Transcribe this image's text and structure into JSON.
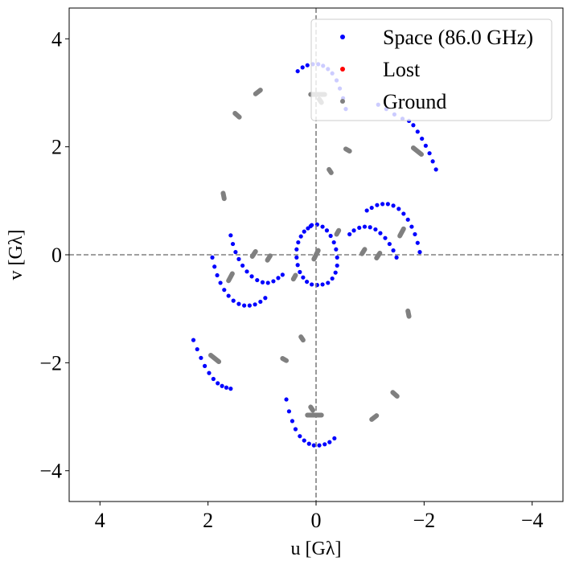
{
  "chart_data": {
    "type": "scatter",
    "title": "",
    "xlabel": "u [Gλ]",
    "ylabel": "v [Gλ]",
    "xlim": [
      4.57,
      -4.57
    ],
    "ylim": [
      -4.57,
      4.57
    ],
    "x_ticks": [
      4,
      2,
      0,
      -2,
      -4
    ],
    "y_ticks": [
      4,
      2,
      0,
      -2,
      -4
    ],
    "x_tick_labels": [
      "4",
      "2",
      "0",
      "−2",
      "−4"
    ],
    "y_tick_labels": [
      "4",
      "2",
      "0",
      "−2",
      "−4"
    ],
    "reference_lines": [
      {
        "axis": "x",
        "value": 0
      },
      {
        "axis": "y",
        "value": 0
      }
    ],
    "legend_position": "top-right",
    "legend": [
      {
        "label": "Space (86.0 GHz)",
        "color": "#0000ff"
      },
      {
        "label": "Lost",
        "color": "#ff0000"
      },
      {
        "label": "Ground",
        "color": "#808080"
      }
    ],
    "colors": {
      "space": "#0000ff",
      "lost": "#ff0000",
      "ground": "#808080",
      "refline": "#808080"
    },
    "space_arcs": [
      [
        [
          0.34,
          3.4
        ],
        [
          0.25,
          3.47
        ],
        [
          0.16,
          3.51
        ],
        [
          0.06,
          3.53
        ],
        [
          -0.04,
          3.53
        ],
        [
          -0.13,
          3.5
        ],
        [
          -0.22,
          3.44
        ],
        [
          -0.3,
          3.36
        ],
        [
          -0.38,
          3.23
        ],
        [
          -0.44,
          3.08
        ],
        [
          -0.5,
          2.9
        ],
        [
          -0.55,
          2.7
        ]
      ],
      [
        [
          -1.15,
          2.78
        ],
        [
          -1.3,
          2.7
        ],
        [
          -1.45,
          2.6
        ],
        [
          -1.6,
          2.52
        ],
        [
          -1.72,
          2.48
        ],
        [
          -1.8,
          2.4
        ],
        [
          -1.88,
          2.28
        ],
        [
          -1.96,
          2.15
        ],
        [
          -2.03,
          2.02
        ],
        [
          -2.1,
          1.88
        ],
        [
          -2.16,
          1.73
        ],
        [
          -2.22,
          1.58
        ]
      ],
      [
        [
          -0.34,
          -3.4
        ],
        [
          -0.25,
          -3.47
        ],
        [
          -0.16,
          -3.51
        ],
        [
          -0.06,
          -3.53
        ],
        [
          0.04,
          -3.53
        ],
        [
          0.13,
          -3.5
        ],
        [
          0.22,
          -3.44
        ],
        [
          0.3,
          -3.36
        ],
        [
          0.38,
          -3.23
        ],
        [
          0.44,
          -3.08
        ],
        [
          0.5,
          -2.9
        ],
        [
          0.55,
          -2.68
        ]
      ],
      [
        [
          2.27,
          -1.58
        ],
        [
          2.2,
          -1.75
        ],
        [
          2.13,
          -1.91
        ],
        [
          2.06,
          -2.06
        ],
        [
          1.98,
          -2.19
        ],
        [
          1.9,
          -2.3
        ],
        [
          1.82,
          -2.38
        ],
        [
          1.74,
          -2.43
        ],
        [
          1.66,
          -2.46
        ],
        [
          1.58,
          -2.48
        ]
      ],
      [
        [
          0.08,
          0.55
        ],
        [
          -0.02,
          0.56
        ],
        [
          -0.12,
          0.52
        ],
        [
          -0.2,
          0.45
        ],
        [
          -0.27,
          0.35
        ],
        [
          -0.33,
          0.23
        ],
        [
          -0.37,
          0.1
        ],
        [
          -0.39,
          -0.05
        ],
        [
          -0.39,
          -0.2
        ],
        [
          -0.36,
          -0.33
        ],
        [
          -0.3,
          -0.44
        ],
        [
          -0.22,
          -0.52
        ],
        [
          -0.12,
          -0.55
        ],
        [
          -0.02,
          -0.56
        ]
      ],
      [
        [
          0.08,
          -0.55
        ],
        [
          0.17,
          -0.5
        ],
        [
          0.24,
          -0.42
        ],
        [
          0.3,
          -0.32
        ],
        [
          0.34,
          -0.19
        ],
        [
          0.36,
          -0.05
        ],
        [
          0.36,
          0.1
        ],
        [
          0.33,
          0.23
        ],
        [
          0.28,
          0.34
        ],
        [
          0.22,
          0.43
        ],
        [
          0.15,
          0.49
        ],
        [
          0.1,
          0.53
        ]
      ],
      [
        [
          1.92,
          -0.05
        ],
        [
          1.88,
          -0.22
        ],
        [
          1.83,
          -0.38
        ],
        [
          1.77,
          -0.52
        ],
        [
          1.7,
          -0.65
        ],
        [
          1.62,
          -0.76
        ],
        [
          1.53,
          -0.85
        ],
        [
          1.43,
          -0.91
        ],
        [
          1.33,
          -0.94
        ],
        [
          1.23,
          -0.94
        ],
        [
          1.13,
          -0.92
        ],
        [
          1.03,
          -0.87
        ],
        [
          0.94,
          -0.8
        ]
      ],
      [
        [
          1.58,
          0.36
        ],
        [
          1.54,
          0.2
        ],
        [
          1.49,
          0.05
        ],
        [
          1.43,
          -0.08
        ],
        [
          1.36,
          -0.2
        ],
        [
          1.28,
          -0.31
        ],
        [
          1.19,
          -0.4
        ],
        [
          1.09,
          -0.47
        ],
        [
          0.99,
          -0.51
        ],
        [
          0.89,
          -0.52
        ],
        [
          0.79,
          -0.49
        ],
        [
          0.7,
          -0.43
        ],
        [
          0.62,
          -0.37
        ]
      ],
      [
        [
          -0.62,
          0.38
        ],
        [
          -0.7,
          0.45
        ],
        [
          -0.8,
          0.5
        ],
        [
          -0.9,
          0.52
        ],
        [
          -1.0,
          0.51
        ],
        [
          -1.1,
          0.47
        ],
        [
          -1.19,
          0.4
        ],
        [
          -1.28,
          0.31
        ],
        [
          -1.36,
          0.2
        ],
        [
          -1.43,
          0.08
        ],
        [
          -1.49,
          -0.05
        ]
      ],
      [
        [
          -0.94,
          0.82
        ],
        [
          -1.03,
          0.87
        ],
        [
          -1.13,
          0.92
        ],
        [
          -1.23,
          0.94
        ],
        [
          -1.33,
          0.94
        ],
        [
          -1.43,
          0.91
        ],
        [
          -1.53,
          0.85
        ],
        [
          -1.62,
          0.76
        ],
        [
          -1.7,
          0.65
        ],
        [
          -1.77,
          0.52
        ],
        [
          -1.83,
          0.38
        ],
        [
          -1.88,
          0.22
        ],
        [
          -1.92,
          0.05
        ]
      ]
    ],
    "ground_segments": [
      [
        [
          0.1,
          2.97
        ],
        [
          -0.16,
          2.97
        ]
      ],
      [
        [
          -0.1,
          -2.97
        ],
        [
          0.16,
          -2.97
        ]
      ],
      [
        [
          1.03,
          3.05
        ],
        [
          1.12,
          2.98
        ]
      ],
      [
        [
          -1.03,
          -3.05
        ],
        [
          -1.12,
          -2.98
        ]
      ],
      [
        [
          1.5,
          2.62
        ],
        [
          1.42,
          2.55
        ]
      ],
      [
        [
          -1.5,
          -2.62
        ],
        [
          -1.42,
          -2.55
        ]
      ],
      [
        [
          -0.04,
          0.08
        ],
        [
          0.04,
          -0.08
        ]
      ],
      [
        [
          -0.55,
          1.96
        ],
        [
          -0.62,
          1.92
        ]
      ],
      [
        [
          0.55,
          -1.96
        ],
        [
          0.62,
          -1.92
        ]
      ],
      [
        [
          -0.24,
          1.58
        ],
        [
          -0.28,
          1.52
        ]
      ],
      [
        [
          0.24,
          -1.58
        ],
        [
          0.28,
          -1.52
        ]
      ],
      [
        [
          1.72,
          1.14
        ],
        [
          1.7,
          1.04
        ]
      ],
      [
        [
          -1.72,
          -1.14
        ],
        [
          -1.7,
          -1.04
        ]
      ],
      [
        [
          -1.8,
          1.98
        ],
        [
          -1.95,
          1.86
        ]
      ],
      [
        [
          1.8,
          -1.98
        ],
        [
          1.95,
          -1.86
        ]
      ],
      [
        [
          -0.06,
          2.88
        ],
        [
          -0.1,
          2.82
        ]
      ],
      [
        [
          0.06,
          -2.88
        ],
        [
          0.1,
          -2.82
        ]
      ],
      [
        [
          1.55,
          -0.35
        ],
        [
          1.62,
          -0.48
        ]
      ],
      [
        [
          -1.55,
          0.35
        ],
        [
          -1.62,
          0.48
        ]
      ],
      [
        [
          0.85,
          -0.02
        ],
        [
          0.9,
          -0.1
        ]
      ],
      [
        [
          -0.85,
          0.02
        ],
        [
          -0.9,
          0.1
        ]
      ],
      [
        [
          1.12,
          0.06
        ],
        [
          1.18,
          -0.03
        ]
      ],
      [
        [
          -1.12,
          -0.06
        ],
        [
          -1.18,
          0.03
        ]
      ],
      [
        [
          0.38,
          -0.38
        ],
        [
          0.42,
          -0.45
        ]
      ],
      [
        [
          -0.38,
          0.38
        ],
        [
          -0.42,
          0.45
        ]
      ]
    ],
    "lost_points": []
  }
}
